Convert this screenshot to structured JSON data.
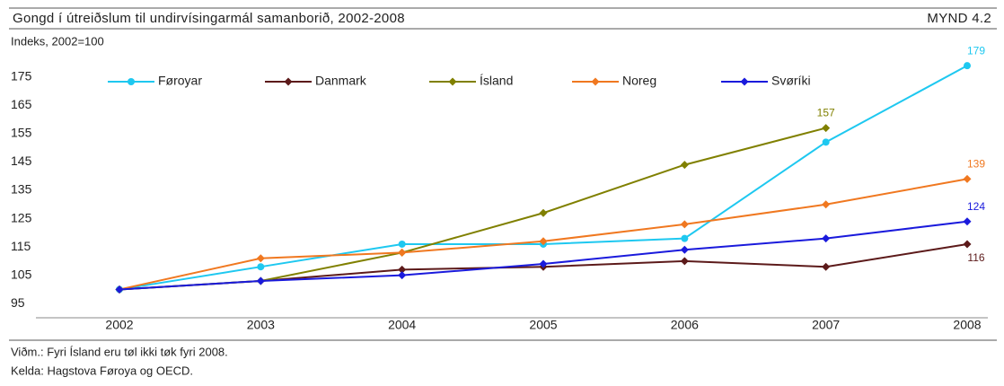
{
  "chart_data": {
    "type": "line",
    "title": "Gongd í útreiðslum til undirvísingarmál samanborið, 2002-2008",
    "figure_label": "MYND 4.2",
    "y_label": "Indeks, 2002=100",
    "notes": [
      "Viðm.: Fyri Ísland eru tøl ikki tøk fyri 2008.",
      "Kelda: Hagstova Føroya og OECD."
    ],
    "categories": [
      "2002",
      "2003",
      "2004",
      "2005",
      "2006",
      "2007",
      "2008"
    ],
    "series": [
      {
        "name": "Føroyar",
        "color": "#1ec8f0",
        "marker": "circle",
        "values": [
          100,
          108,
          116,
          116,
          118,
          152,
          179
        ]
      },
      {
        "name": "Danmark",
        "color": "#5c1a1a",
        "marker": "diamond",
        "values": [
          100,
          103,
          107,
          108,
          110,
          108,
          116
        ]
      },
      {
        "name": "Ísland",
        "color": "#808000",
        "marker": "diamond",
        "values": [
          100,
          103,
          113,
          127,
          144,
          157,
          null
        ]
      },
      {
        "name": "Noreg",
        "color": "#f07820",
        "marker": "diamond",
        "values": [
          100,
          111,
          113,
          117,
          123,
          130,
          139
        ]
      },
      {
        "name": "Svøríki",
        "color": "#1a1adc",
        "marker": "diamond",
        "values": [
          100,
          103,
          105,
          109,
          114,
          118,
          124
        ]
      }
    ],
    "ylim": [
      90,
      180
    ],
    "yticks": [
      95,
      105,
      115,
      125,
      135,
      145,
      155,
      165,
      175
    ],
    "grid": false,
    "legend": "top"
  }
}
